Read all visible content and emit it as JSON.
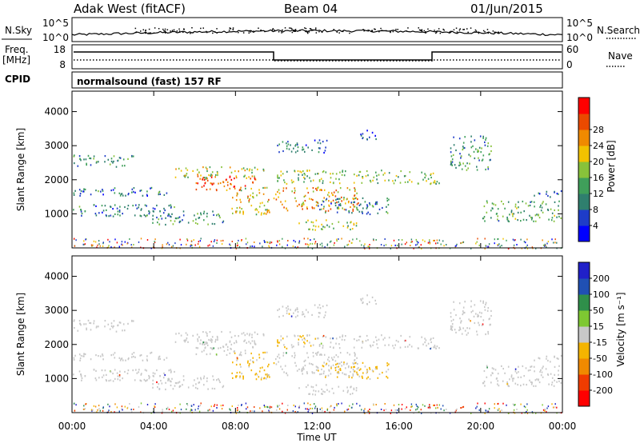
{
  "header": {
    "station": "Adak West (fitACF)",
    "beam": "Beam 04",
    "date": "01/Jun/2015"
  },
  "noise_panel": {
    "left_label": "N.Sky",
    "left_ticks": [
      "10^5",
      "10^0"
    ],
    "right_ticks": [
      "10^5",
      "10^0"
    ],
    "right_label": "N.Search"
  },
  "freq_panel": {
    "left_label_top": "Freq.",
    "left_label_unit": "[MHz]",
    "left_ticks": [
      "18",
      "8"
    ],
    "right_ticks": [
      "60",
      "0"
    ],
    "right_label": "Nave"
  },
  "cpid_panel": {
    "label": "CPID",
    "value": "normalsound (fast) 157 RF"
  },
  "colors": {
    "power_scale": [
      "#0000ff",
      "#1e3cc8",
      "#2f7f6e",
      "#3f9f5a",
      "#88c23a",
      "#f2c200",
      "#f08a00",
      "#ea4a00",
      "#ff0000"
    ],
    "velocity_scale": [
      "#ff0000",
      "#f03c00",
      "#f08a00",
      "#f4b400",
      "#c8c8c8",
      "#7ec832",
      "#2f8f4a",
      "#2050b4",
      "#2020c8"
    ],
    "scatter_gray": "#c8c8c8"
  },
  "chart_data": [
    {
      "type": "heatmap",
      "name_visible": "",
      "ylabel": "Slant Range [km]",
      "ylim": [
        0,
        4600
      ],
      "yticks": [
        "1000",
        "2000",
        "3000",
        "4000"
      ],
      "colorbar_label": "Power [dB]",
      "colorbar_ticks": [
        "4",
        "8",
        "12",
        "16",
        "20",
        "24",
        "28"
      ],
      "clim": [
        0,
        32
      ]
    },
    {
      "type": "heatmap",
      "ylabel": "Slant Range [km]",
      "ylim": [
        0,
        4600
      ],
      "yticks": [
        "1000",
        "2000",
        "3000",
        "4000"
      ],
      "colorbar_label": "Velocity [m s⁻¹]",
      "colorbar_ticks": [
        "-200",
        "-100",
        "-50",
        "-15",
        "15",
        "50",
        "100",
        "200"
      ]
    }
  ],
  "time_axis": {
    "xlabel": "Time UT",
    "xticks": [
      "00:00",
      "04:00",
      "08:00",
      "12:00",
      "16:00",
      "20:00",
      "00:00"
    ],
    "xlim_hours": [
      0,
      24
    ]
  },
  "scatter_bands": [
    {
      "t0": 0.0,
      "t1": 3.0,
      "r0": 2400,
      "r1": 2750,
      "p": 10
    },
    {
      "t0": 0.0,
      "t1": 5.0,
      "r0": 1550,
      "r1": 1800,
      "p": 9
    },
    {
      "t0": 0.0,
      "t1": 5.0,
      "r0": 950,
      "r1": 1300,
      "p": 9
    },
    {
      "t0": 3.5,
      "t1": 7.5,
      "r0": 700,
      "r1": 1100,
      "p": 11
    },
    {
      "t0": 5.0,
      "t1": 9.5,
      "r0": 2050,
      "r1": 2400,
      "p": 17
    },
    {
      "t0": 6.0,
      "t1": 9.0,
      "r0": 1700,
      "r1": 2150,
      "p": 26
    },
    {
      "t0": 7.8,
      "t1": 9.9,
      "r0": 1000,
      "r1": 1800,
      "p": 19
    },
    {
      "t0": 9.9,
      "t1": 14.0,
      "r0": 1100,
      "r1": 1800,
      "p": 22
    },
    {
      "t0": 10.0,
      "t1": 18.0,
      "r0": 1900,
      "r1": 2300,
      "p": 15
    },
    {
      "t0": 11.0,
      "t1": 14.0,
      "r0": 550,
      "r1": 850,
      "p": 16
    },
    {
      "t0": 12.0,
      "t1": 15.5,
      "r0": 1000,
      "r1": 1500,
      "p": 9
    },
    {
      "t0": 10.0,
      "t1": 12.5,
      "r0": 2800,
      "r1": 3200,
      "p": 8
    },
    {
      "t0": 14.0,
      "t1": 15.0,
      "r0": 3200,
      "r1": 3500,
      "p": 6
    },
    {
      "t0": 18.5,
      "t1": 20.5,
      "r0": 2300,
      "r1": 3300,
      "p": 11
    },
    {
      "t0": 20.0,
      "t1": 24.0,
      "r0": 800,
      "r1": 1400,
      "p": 13
    },
    {
      "t0": 22.5,
      "t1": 24.0,
      "r0": 1500,
      "r1": 1700,
      "p": 8
    }
  ]
}
